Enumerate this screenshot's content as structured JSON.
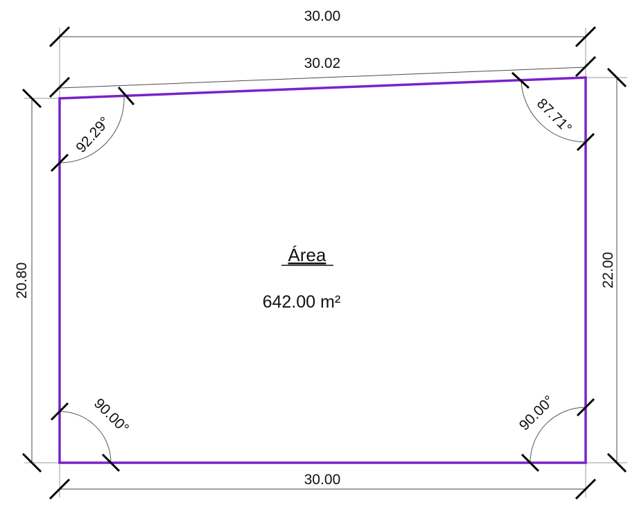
{
  "plot": {
    "outline_color": "#7a22c9",
    "dimensions": {
      "top_horizontal": "30.00",
      "top_edge": "30.02",
      "bottom": "30.00",
      "left": "20.80",
      "right": "22.00"
    },
    "angles": {
      "top_left": "92.29°",
      "top_right": "87.71°",
      "bottom_left": "90.00°",
      "bottom_right": "90.00°"
    },
    "area": {
      "title": "Área",
      "value": "642.00 m²"
    }
  }
}
